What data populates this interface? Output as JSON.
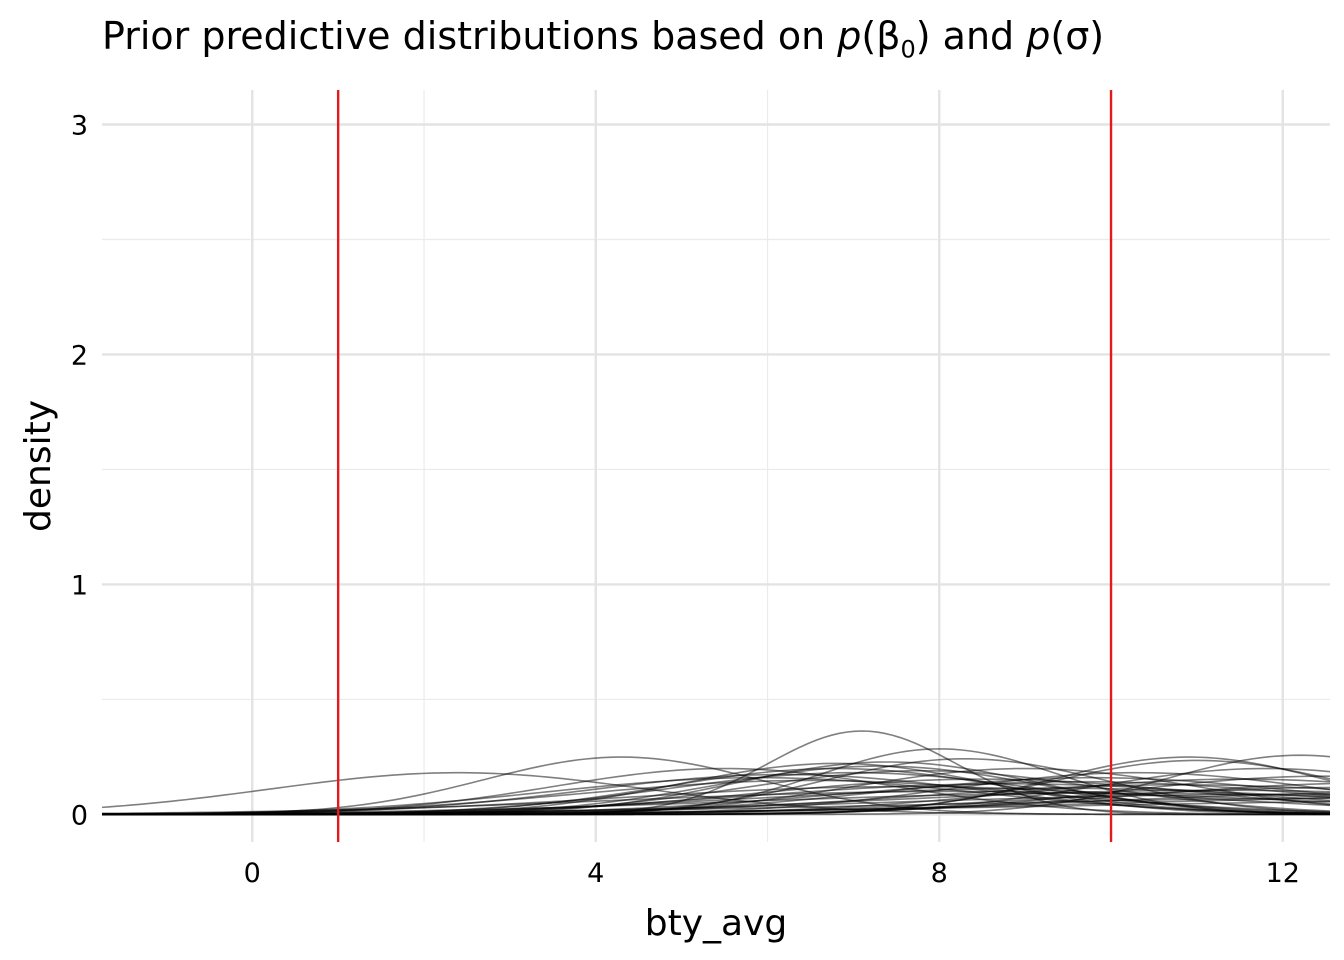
{
  "chart_data": {
    "type": "line",
    "title": {
      "prefix": "Prior predictive distributions based on ",
      "p1": "p",
      "beta": "(β",
      "beta_sub": "0",
      "close1": ")",
      "and": " and ",
      "p2": "p",
      "sigma": "(σ)"
    },
    "xlabel": "bty_avg",
    "ylabel": "density",
    "xlim": [
      -1.75,
      12.55
    ],
    "ylim": [
      -0.12,
      3.15
    ],
    "x_ticks": [
      0,
      4,
      8,
      12
    ],
    "x_tick_labels": [
      "0",
      "4",
      "8",
      "12"
    ],
    "y_ticks": [
      0,
      1,
      2,
      3
    ],
    "y_tick_labels": [
      "0",
      "1",
      "2",
      "3"
    ],
    "grid": true,
    "legend": "none",
    "reference_lines": [
      {
        "x": 1,
        "color": "#e31a1c"
      },
      {
        "x": 10,
        "color": "#e31a1c"
      }
    ],
    "curve_color": "#000000",
    "curve_opacity": 0.5,
    "series_type": "normal density curves",
    "series": [
      {
        "mean": 2.4,
        "sd": 2.2
      },
      {
        "mean": 4.3,
        "sd": 1.6
      },
      {
        "mean": 7.1,
        "sd": 1.1
      },
      {
        "mean": 8.0,
        "sd": 1.4
      },
      {
        "mean": 8.3,
        "sd": 1.65
      },
      {
        "mean": 10.9,
        "sd": 1.6
      },
      {
        "mean": 12.2,
        "sd": 1.55
      },
      {
        "mean": 11.0,
        "sd": 1.7
      },
      {
        "mean": 6.8,
        "sd": 1.8
      },
      {
        "mean": 7.3,
        "sd": 1.9
      },
      {
        "mean": 7.8,
        "sd": 2.1
      },
      {
        "mean": 6.2,
        "sd": 2.3
      },
      {
        "mean": 9.0,
        "sd": 2.0
      },
      {
        "mean": 8.5,
        "sd": 2.6
      },
      {
        "mean": 5.9,
        "sd": 2.5
      },
      {
        "mean": 10.3,
        "sd": 2.2
      },
      {
        "mean": 11.8,
        "sd": 2.0
      },
      {
        "mean": 9.6,
        "sd": 2.8
      },
      {
        "mean": 7.0,
        "sd": 2.2
      },
      {
        "mean": 6.5,
        "sd": 2.7
      },
      {
        "mean": 8.8,
        "sd": 3.0
      },
      {
        "mean": 10.8,
        "sd": 3.1
      },
      {
        "mean": 12.5,
        "sd": 2.4
      },
      {
        "mean": 9.3,
        "sd": 3.5
      },
      {
        "mean": 7.6,
        "sd": 3.3
      },
      {
        "mean": 11.2,
        "sd": 3.8
      },
      {
        "mean": 13.2,
        "sd": 2.9
      },
      {
        "mean": 8.2,
        "sd": 4.0
      },
      {
        "mean": 10.0,
        "sd": 4.3
      },
      {
        "mean": 12.0,
        "sd": 4.6
      },
      {
        "mean": 6.8,
        "sd": 2.0
      },
      {
        "mean": 9.8,
        "sd": 2.5
      },
      {
        "mean": 5.5,
        "sd": 2.0
      },
      {
        "mean": 11.5,
        "sd": 2.6
      },
      {
        "mean": 7.4,
        "sd": 1.75
      },
      {
        "mean": 12.8,
        "sd": 3.4
      },
      {
        "mean": 14.0,
        "sd": 4.0
      },
      {
        "mean": 15.0,
        "sd": 5.0
      },
      {
        "mean": 16.0,
        "sd": 6.0
      },
      {
        "mean": 13.5,
        "sd": 5.5
      }
    ]
  }
}
